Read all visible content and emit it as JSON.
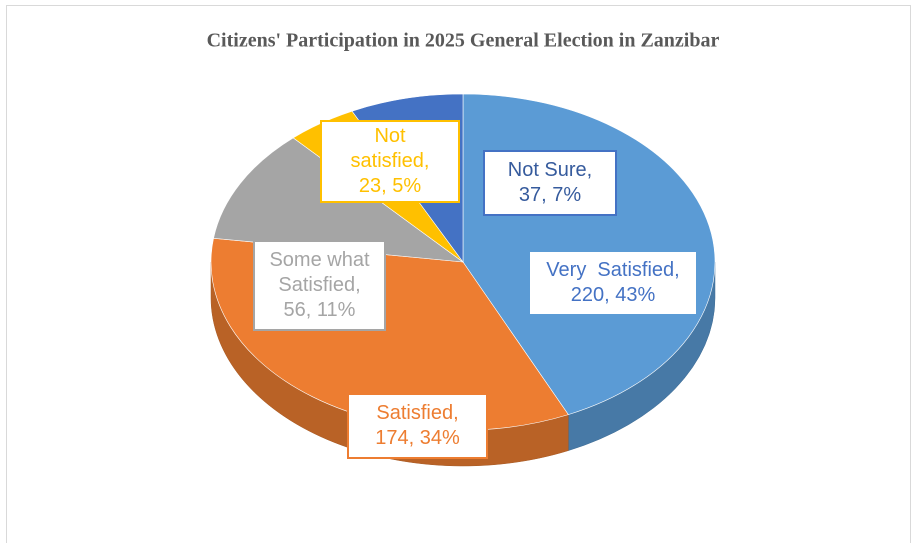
{
  "chart_data": {
    "type": "pie",
    "title": "Citizens' Participation in 2025 General Election  in  Zanzibar",
    "values": [
      220,
      174,
      56,
      23,
      37
    ],
    "value_labels": [
      "Very  Satisfied, 220, 43%",
      "Satisfied, 174, 34%",
      "Some what Satisfied, 56, 11%",
      "Not satisfied, 23, 5%",
      "Not Sure, 37, 7%"
    ],
    "colors": [
      "#5b9bd5",
      "#ed7d31",
      "#a5a5a5",
      "#ffc000",
      "#4472c4"
    ]
  }
}
